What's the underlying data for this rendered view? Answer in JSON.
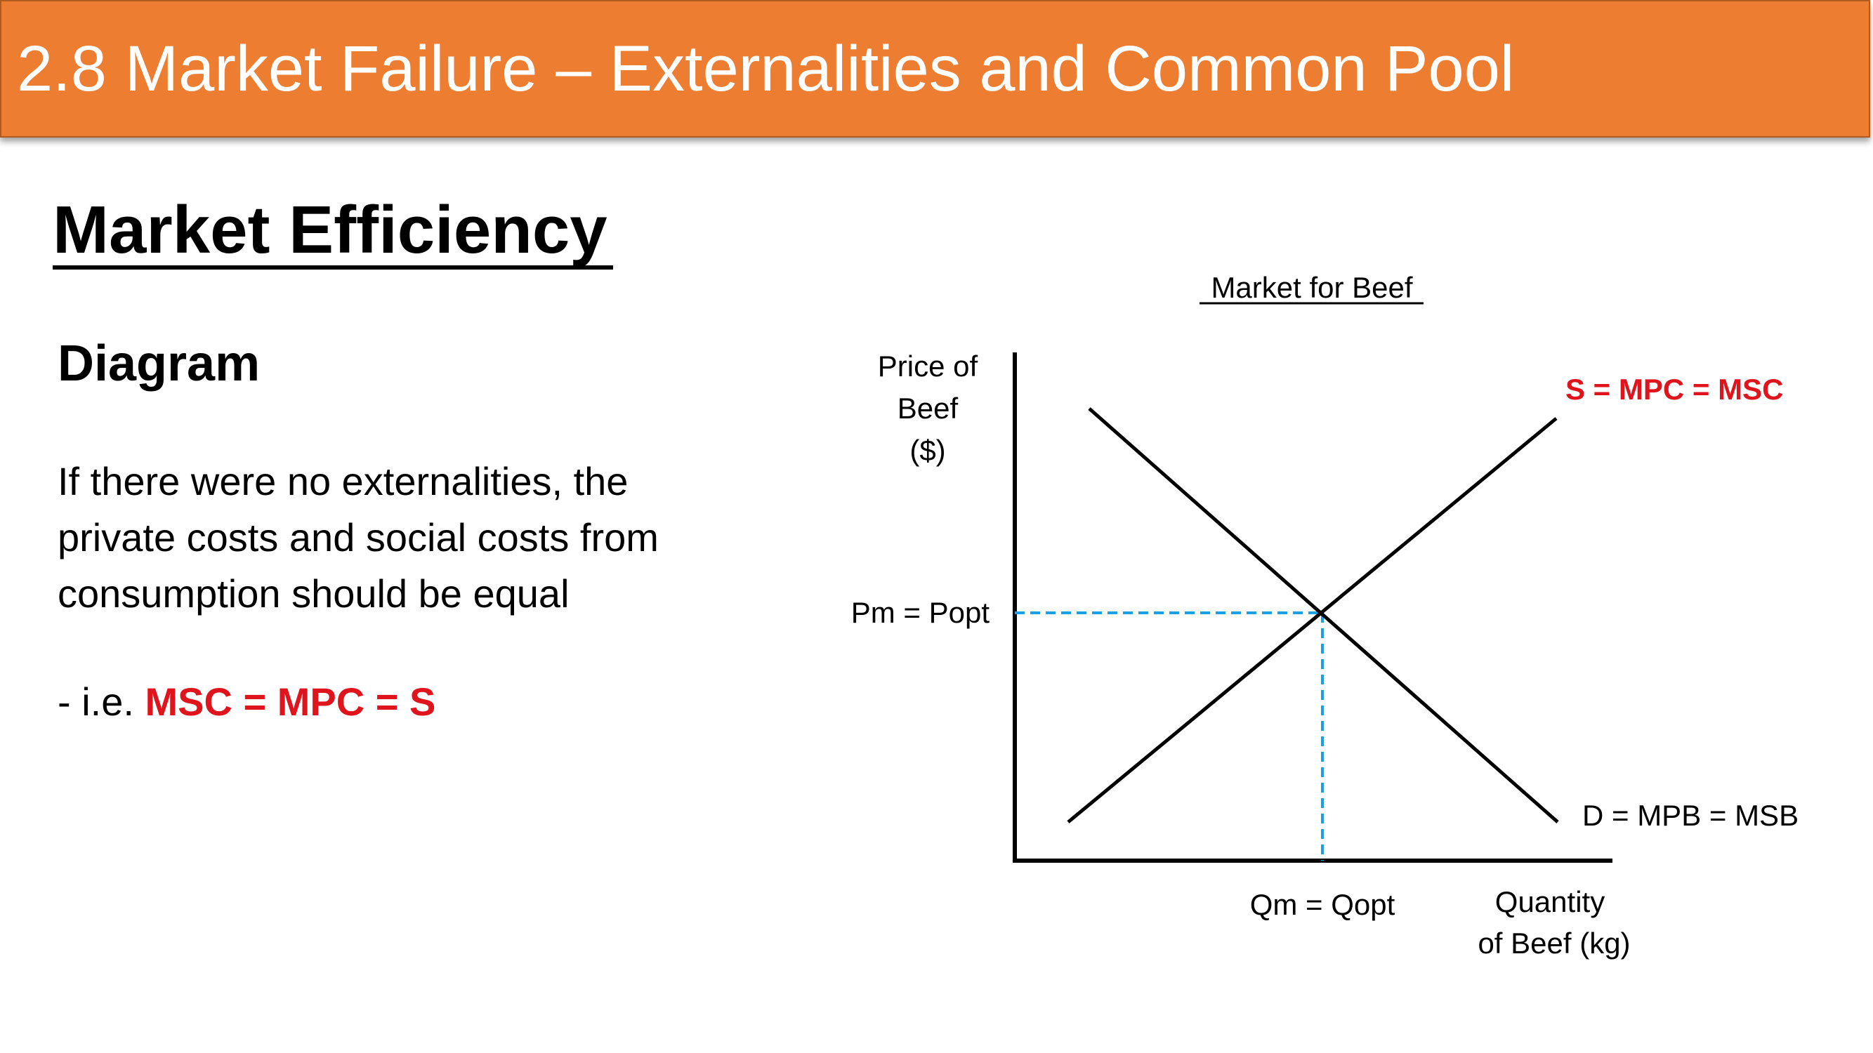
{
  "slide": {
    "title": "2.8 Market Failure – Externalities and Common Pool",
    "heading": "Market Efficiency",
    "subheading": "Diagram",
    "body_lines": [
      "If there were no externalities, the",
      "private costs and social costs from",
      "consumption should be equal"
    ],
    "note_prefix": "- i.e. ",
    "note_highlight": "MSC = MPC = S"
  },
  "diagram": {
    "title": "Market for Beef",
    "y_axis_label": [
      "Price of",
      "Beef",
      "($)"
    ],
    "x_axis_label": [
      "Quantity",
      "of Beef (kg)"
    ],
    "price_label": "Pm = Popt",
    "quantity_label": "Qm = Qopt",
    "supply_label": "S = MPC = MSC",
    "demand_label": "D = MPB = MSB"
  },
  "colors": {
    "title_bar": "#ED7D31",
    "highlight_red": "#E0141C",
    "dashed_guide": "#1BA1E2"
  }
}
